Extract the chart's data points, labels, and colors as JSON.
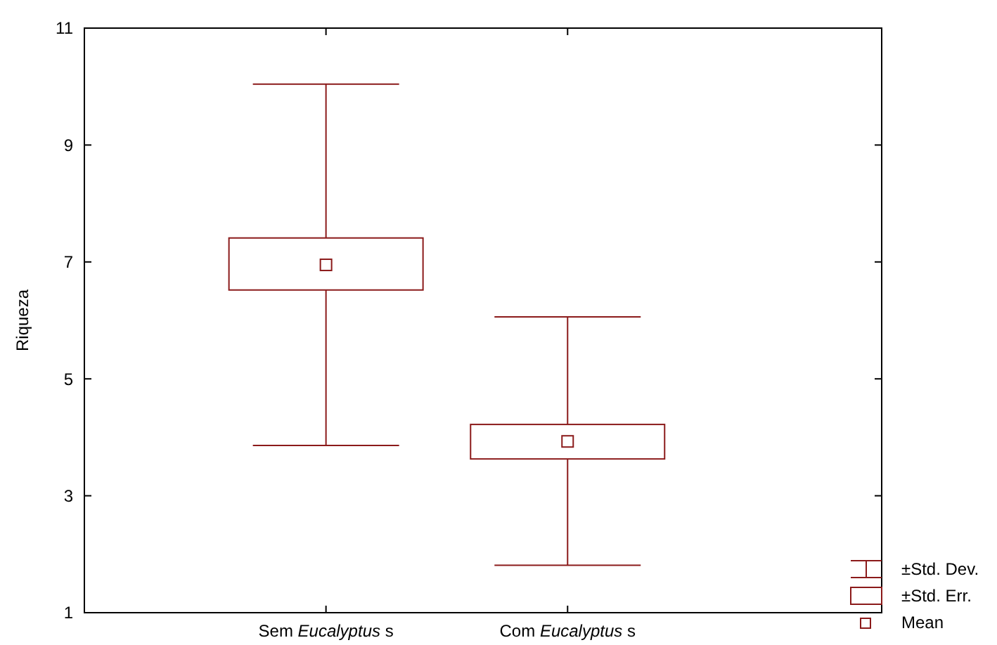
{
  "chart_data": {
    "type": "box",
    "ylabel": "Riqueza",
    "categories": [
      "Sem Eucalyptus s",
      "Com Eucalyptus s"
    ],
    "series": [
      {
        "color": "#8b1a1a",
        "boxes": [
          {
            "low": 3.86,
            "q1": 6.52,
            "q3": 7.41,
            "high": 10.04,
            "mean": 6.95
          },
          {
            "low": 1.81,
            "q1": 3.63,
            "q3": 4.22,
            "high": 6.06,
            "mean": 3.93
          }
        ]
      }
    ],
    "ylim": [
      1,
      11
    ],
    "yticks": [
      1,
      3,
      5,
      7,
      9,
      11
    ],
    "grid": false,
    "annotations": [
      "±Std. Dev.",
      "±Std. Err.",
      "Mean"
    ]
  }
}
